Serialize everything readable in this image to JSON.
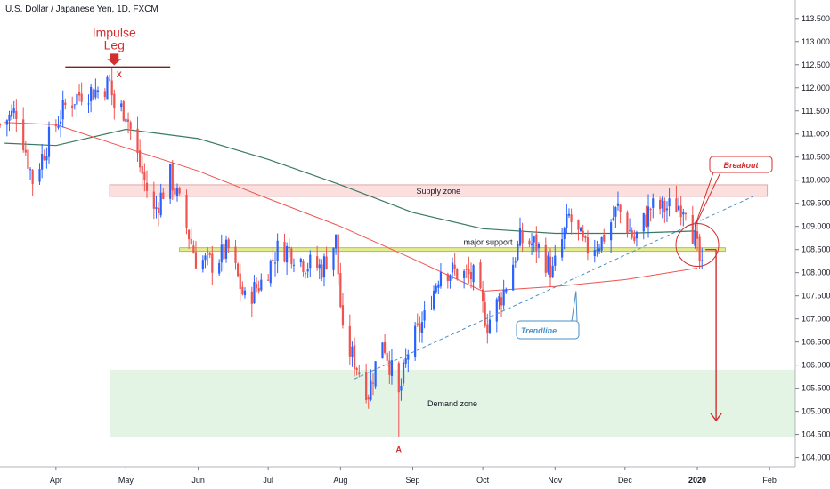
{
  "header": {
    "title": "U.S. Dollar / Japanese Yen, 1D, FXCM"
  },
  "chart_data": {
    "type": "candlestick",
    "ylim": [
      103.8,
      113.9
    ],
    "xlim": [
      "2019-03-08",
      "2020-02-12"
    ],
    "y_ticks": [
      "104.000",
      "104.500",
      "105.000",
      "105.500",
      "106.000",
      "106.500",
      "107.000",
      "107.500",
      "108.000",
      "108.500",
      "109.000",
      "109.500",
      "110.000",
      "110.500",
      "111.000",
      "111.500",
      "112.000",
      "112.500",
      "113.000",
      "113.500"
    ],
    "x_ticks": [
      {
        "label": "Apr",
        "date": "2019-04-01",
        "bold": false
      },
      {
        "label": "May",
        "date": "2019-05-01",
        "bold": false
      },
      {
        "label": "Jun",
        "date": "2019-06-01",
        "bold": false
      },
      {
        "label": "Jul",
        "date": "2019-07-01",
        "bold": false
      },
      {
        "label": "Aug",
        "date": "2019-08-01",
        "bold": false
      },
      {
        "label": "Sep",
        "date": "2019-09-01",
        "bold": false
      },
      {
        "label": "Oct",
        "date": "2019-10-01",
        "bold": false
      },
      {
        "label": "Nov",
        "date": "2019-11-01",
        "bold": false
      },
      {
        "label": "Dec",
        "date": "2019-12-01",
        "bold": false
      },
      {
        "label": "2020",
        "date": "2020-01-01",
        "bold": true
      },
      {
        "label": "Feb",
        "date": "2020-02-01",
        "bold": false
      }
    ],
    "colors": {
      "up": "#2962ff",
      "down": "#ef5350",
      "ma_green": "#3a7a63",
      "ma_red": "#ef5350",
      "trendline": "#4a90c8",
      "annotation": "#d32f2f"
    },
    "close_anchors": [
      [
        "2019-03-08",
        111.2
      ],
      [
        "2019-03-15",
        111.5
      ],
      [
        "2019-03-22",
        110.0
      ],
      [
        "2019-03-29",
        110.9
      ],
      [
        "2019-04-05",
        111.6
      ],
      [
        "2019-04-12",
        111.9
      ],
      [
        "2019-04-19",
        111.95
      ],
      [
        "2019-04-24",
        112.1
      ],
      [
        "2019-04-26",
        111.6
      ],
      [
        "2019-05-01",
        111.5
      ],
      [
        "2019-05-07",
        110.3
      ],
      [
        "2019-05-13",
        109.3
      ],
      [
        "2019-05-20",
        110.1
      ],
      [
        "2019-05-24",
        109.5
      ],
      [
        "2019-05-31",
        108.3
      ],
      [
        "2019-06-07",
        108.2
      ],
      [
        "2019-06-14",
        108.5
      ],
      [
        "2019-06-21",
        107.4
      ],
      [
        "2019-06-28",
        107.8
      ],
      [
        "2019-07-05",
        108.5
      ],
      [
        "2019-07-10",
        108.5
      ],
      [
        "2019-07-17",
        108.2
      ],
      [
        "2019-07-24",
        108.1
      ],
      [
        "2019-07-30",
        108.7
      ],
      [
        "2019-08-02",
        106.6
      ],
      [
        "2019-08-07",
        106.1
      ],
      [
        "2019-08-13",
        105.4
      ],
      [
        "2019-08-19",
        106.6
      ],
      [
        "2019-08-26",
        105.3
      ],
      [
        "2019-08-30",
        106.3
      ],
      [
        "2019-09-06",
        107.0
      ],
      [
        "2019-09-13",
        108.1
      ],
      [
        "2019-09-20",
        108.0
      ],
      [
        "2019-09-27",
        107.9
      ],
      [
        "2019-10-03",
        106.9
      ],
      [
        "2019-10-10",
        107.6
      ],
      [
        "2019-10-17",
        108.7
      ],
      [
        "2019-10-24",
        108.6
      ],
      [
        "2019-10-31",
        108.0
      ],
      [
        "2019-11-07",
        109.2
      ],
      [
        "2019-11-14",
        108.5
      ],
      [
        "2019-11-21",
        108.7
      ],
      [
        "2019-11-28",
        109.4
      ],
      [
        "2019-12-05",
        108.7
      ],
      [
        "2019-12-12",
        109.4
      ],
      [
        "2019-12-19",
        109.4
      ],
      [
        "2019-12-27",
        109.5
      ],
      [
        "2019-12-31",
        108.7
      ],
      [
        "2020-01-03",
        108.0
      ]
    ],
    "ma_green": [
      [
        "2019-03-10",
        110.8
      ],
      [
        "2019-04-01",
        110.75
      ],
      [
        "2019-05-01",
        111.1
      ],
      [
        "2019-06-01",
        110.9
      ],
      [
        "2019-07-01",
        110.45
      ],
      [
        "2019-08-01",
        109.9
      ],
      [
        "2019-09-01",
        109.3
      ],
      [
        "2019-10-01",
        108.95
      ],
      [
        "2019-11-01",
        108.85
      ],
      [
        "2019-12-01",
        108.85
      ],
      [
        "2019-12-31",
        108.9
      ]
    ],
    "ma_red": [
      [
        "2019-03-10",
        111.25
      ],
      [
        "2019-04-01",
        111.2
      ],
      [
        "2019-05-01",
        110.7
      ],
      [
        "2019-06-01",
        110.2
      ],
      [
        "2019-07-01",
        109.6
      ],
      [
        "2019-08-01",
        109.0
      ],
      [
        "2019-09-01",
        108.3
      ],
      [
        "2019-10-01",
        107.6
      ],
      [
        "2019-11-01",
        107.7
      ],
      [
        "2019-12-01",
        107.85
      ],
      [
        "2020-01-01",
        108.1
      ]
    ],
    "zones": [
      {
        "name": "supply",
        "label": "Supply zone",
        "x0": "2019-04-24",
        "x1": "2020-01-31",
        "y0": 109.65,
        "y1": 109.9,
        "fill": "rgba(239,83,80,0.18)",
        "stroke": "#e2a6a4"
      },
      {
        "name": "demand",
        "label": "Demand zone",
        "x0": "2019-04-24",
        "x1": "2020-02-12",
        "y0": 104.45,
        "y1": 105.9,
        "fill": "rgba(129,199,132,0.22)",
        "stroke": "none"
      }
    ],
    "support": {
      "label": "major support",
      "x0": "2019-05-24",
      "x1": "2020-01-13",
      "y": 108.5
    },
    "impulse": {
      "label_line1": "Impulse",
      "label_line2": "Leg",
      "x0": "2019-04-05",
      "x1": "2019-05-20",
      "y": 112.45
    },
    "trendline": {
      "x0": "2019-08-07",
      "y0": 105.7,
      "x1": "2020-01-25",
      "y1": 109.65
    },
    "points": [
      {
        "label": "X",
        "date": "2019-04-25",
        "y": 112.3
      },
      {
        "label": "A",
        "date": "2019-08-26",
        "y": 104.35
      }
    ],
    "callouts": [
      {
        "label": "Breakout",
        "target_date": "2019-12-31",
        "target_y": 109.0
      },
      {
        "label": "Trendline",
        "target_date": "2019-11-10",
        "target_y": 107.6
      }
    ],
    "breakout_circle": {
      "date": "2020-01-01",
      "y": 108.6
    },
    "projection_arrow": {
      "date": "2020-01-06",
      "y0": 108.5,
      "y1": 104.8
    }
  }
}
